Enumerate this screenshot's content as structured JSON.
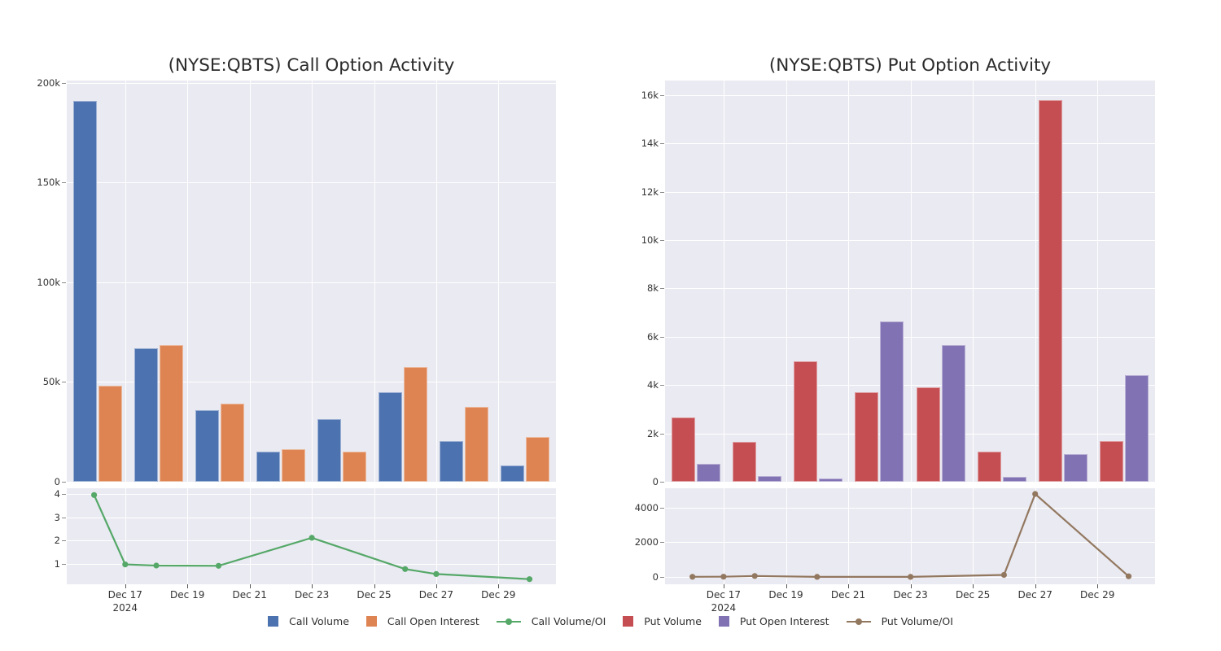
{
  "page": {
    "background": "#ffffff",
    "panel_background": "#EAEAF2",
    "grid_color": "#ffffff",
    "text_color": "#2b2b2b"
  },
  "palette": {
    "blue": "#4C72B0",
    "orange": "#DD8452",
    "green": "#55A868",
    "red": "#C44E52",
    "purple": "#8172B3",
    "brown": "#937860"
  },
  "legend": {
    "items": [
      {
        "label": "Call Volume",
        "type": "square",
        "color": "#4C72B0"
      },
      {
        "label": "Call Open Interest",
        "type": "square",
        "color": "#DD8452"
      },
      {
        "label": "Call Volume/OI",
        "type": "line",
        "color": "#55A868"
      },
      {
        "label": "Put Volume",
        "type": "square",
        "color": "#C44E52"
      },
      {
        "label": "Put Open Interest",
        "type": "square",
        "color": "#8172B3"
      },
      {
        "label": "Put Volume/OI",
        "type": "line",
        "color": "#937860"
      }
    ]
  },
  "chart_data": [
    {
      "id": "call",
      "type": "bar",
      "title": "(NYSE:QBTS) Call Option Activity",
      "categories": [
        "Dec 16",
        "Dec 17",
        "Dec 18",
        "Dec 20",
        "Dec 23",
        "Dec 26",
        "Dec 27",
        "Dec 30"
      ],
      "bar_series": [
        {
          "name": "Call Volume",
          "color": "#4C72B0",
          "values": [
            191000,
            67000,
            36000,
            15000,
            31500,
            45000,
            20500,
            8000
          ]
        },
        {
          "name": "Call Open Interest",
          "color": "#DD8452",
          "values": [
            48000,
            68500,
            39000,
            16500,
            15000,
            57500,
            37500,
            22500
          ]
        }
      ],
      "bar_yaxis": {
        "range": [
          0,
          201000
        ],
        "ticks": [
          0,
          50000,
          100000,
          150000,
          200000
        ],
        "tick_labels": [
          "0",
          "50k",
          "100k",
          "150k",
          "200k"
        ]
      },
      "line_series": {
        "name": "Call Volume/OI",
        "type": "line",
        "color": "#55A868",
        "days": [
          16,
          17,
          18,
          20,
          23,
          26,
          27,
          30
        ],
        "values": [
          3.95,
          0.98,
          0.93,
          0.92,
          2.12,
          0.78,
          0.57,
          0.35
        ]
      },
      "line_yaxis": {
        "range": [
          0.13,
          4.24
        ],
        "ticks": [
          1,
          2,
          3,
          4
        ],
        "tick_labels": [
          "1",
          "2",
          "3",
          "4"
        ]
      },
      "xaxis": {
        "range_days": [
          15.12,
          30.85
        ],
        "tick_days": [
          17,
          19,
          21,
          23,
          25,
          27,
          29
        ],
        "tick_labels": [
          "Dec 17",
          "Dec 19",
          "Dec 21",
          "Dec 23",
          "Dec 25",
          "Dec 27",
          "Dec 29"
        ],
        "year_label": "2024"
      }
    },
    {
      "id": "put",
      "type": "bar",
      "title": "(NYSE:QBTS) Put Option Activity",
      "categories": [
        "Dec 16",
        "Dec 17",
        "Dec 18",
        "Dec 20",
        "Dec 23",
        "Dec 26",
        "Dec 27",
        "Dec 30"
      ],
      "bar_series": [
        {
          "name": "Put Volume",
          "color": "#C44E52",
          "values": [
            2650,
            1650,
            5000,
            3700,
            3900,
            1250,
            15780,
            1700
          ]
        },
        {
          "name": "Put Open Interest",
          "color": "#8172B3",
          "values": [
            750,
            250,
            130,
            6650,
            5650,
            220,
            1160,
            4400
          ]
        }
      ],
      "bar_yaxis": {
        "range": [
          0,
          16600
        ],
        "ticks": [
          0,
          2000,
          4000,
          6000,
          8000,
          10000,
          12000,
          14000,
          16000
        ],
        "tick_labels": [
          "0",
          "2k",
          "4k",
          "6k",
          "8k",
          "10k",
          "12k",
          "14k",
          "16k"
        ]
      },
      "line_series": {
        "name": "Put Volume/OI",
        "type": "line",
        "color": "#937860",
        "days": [
          16,
          17,
          18,
          20,
          23,
          26,
          27,
          30
        ],
        "values": [
          5,
          8,
          50,
          1,
          1,
          110,
          4800,
          30
        ]
      },
      "line_yaxis": {
        "range": [
          -430,
          5130
        ],
        "ticks": [
          0,
          2000,
          4000
        ],
        "tick_labels": [
          "0",
          "2000",
          "4000"
        ]
      },
      "xaxis": {
        "range_days": [
          15.12,
          30.85
        ],
        "tick_days": [
          17,
          19,
          21,
          23,
          25,
          27,
          29
        ],
        "tick_labels": [
          "Dec 17",
          "Dec 19",
          "Dec 21",
          "Dec 23",
          "Dec 25",
          "Dec 27",
          "Dec 29"
        ],
        "year_label": "2024"
      }
    }
  ]
}
